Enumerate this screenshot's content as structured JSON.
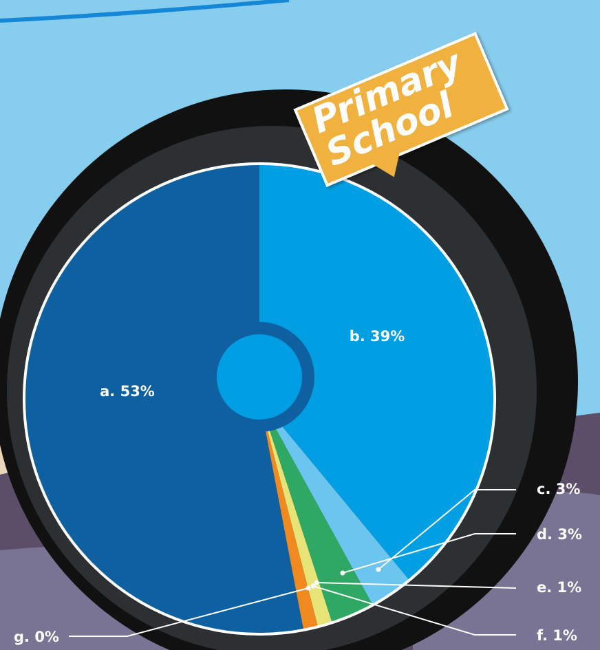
{
  "chart_data": {
    "type": "pie",
    "title": "Primary School",
    "values": [
      53,
      39,
      3,
      3,
      1,
      1,
      0
    ],
    "value_labels": [
      "a. 53%",
      "b. 39%",
      "c. 3%",
      "d. 3%",
      "e. 1%",
      "f. 1%",
      "g. 0%"
    ],
    "colors": [
      "#0f60a0",
      "#009ee2",
      "#6cc5ef",
      "#2ea862",
      "#e6e477",
      "#f0891f",
      "#e8602a"
    ]
  }
}
